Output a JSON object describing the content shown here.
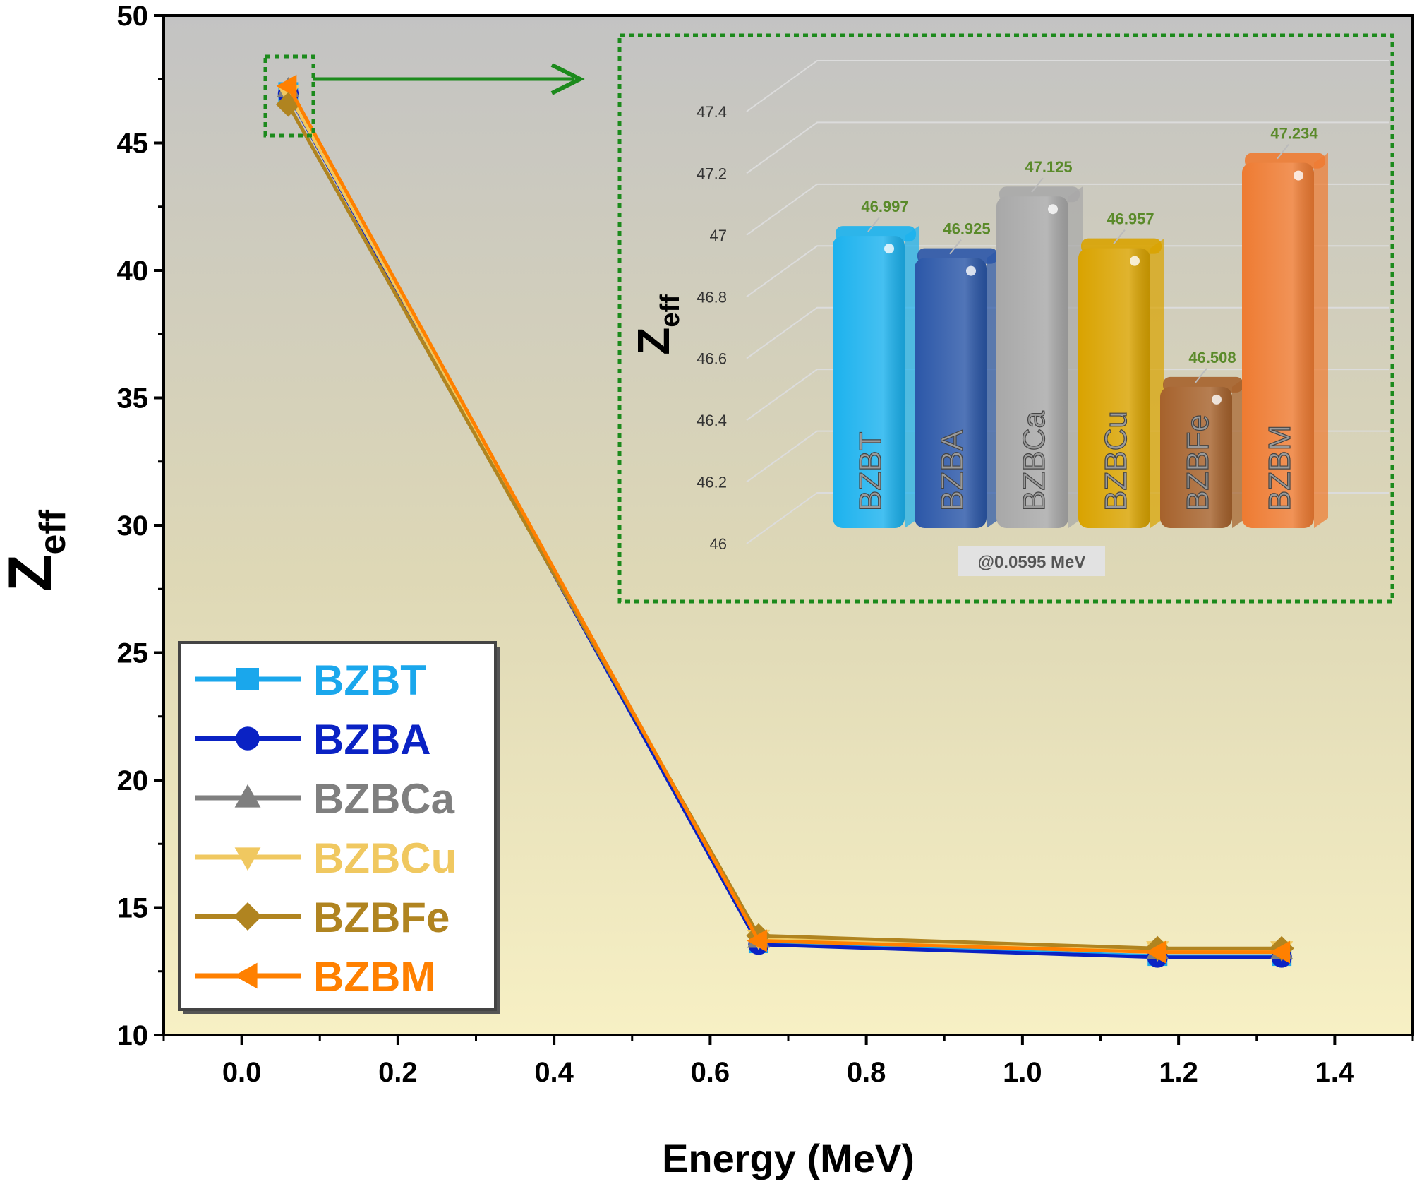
{
  "chart_data": [
    {
      "type": "line",
      "xlabel": "Energy (MeV)",
      "ylabel": {
        "main": "Z",
        "sub": "eff"
      },
      "xlim": [
        -0.1,
        1.5
      ],
      "ylim": [
        10,
        50
      ],
      "xticks": [
        "0.0",
        "0.2",
        "0.4",
        "0.6",
        "0.8",
        "1.0",
        "1.2",
        "1.4"
      ],
      "yticks": [
        "10",
        "15",
        "20",
        "25",
        "30",
        "35",
        "40",
        "45",
        "50"
      ],
      "x": [
        0.0595,
        0.662,
        1.173,
        1.332
      ],
      "series": [
        {
          "name": "BZBT",
          "color": "#1aa7ec",
          "marker": "square",
          "values": [
            46.997,
            13.6,
            13.1,
            13.1
          ]
        },
        {
          "name": "BZBA",
          "color": "#0a22c4",
          "marker": "circle",
          "values": [
            46.925,
            13.55,
            13.05,
            13.05
          ]
        },
        {
          "name": "BZBCa",
          "color": "#7f7f7f",
          "marker": "triangle-up",
          "values": [
            47.125,
            13.75,
            13.3,
            13.3
          ]
        },
        {
          "name": "BZBCu",
          "color": "#f0c860",
          "marker": "triangle-down",
          "values": [
            46.957,
            13.8,
            13.35,
            13.35
          ]
        },
        {
          "name": "BZBFe",
          "color": "#b08420",
          "marker": "diamond",
          "values": [
            46.508,
            13.9,
            13.4,
            13.4
          ]
        },
        {
          "name": "BZBM",
          "color": "#ff8000",
          "marker": "triangle-left",
          "values": [
            47.234,
            13.7,
            13.25,
            13.25
          ]
        }
      ],
      "legend": "bottom-left"
    },
    {
      "type": "bar",
      "title": "@0.0595 MeV",
      "ylabel": {
        "main": "Z",
        "sub": "eff"
      },
      "ylim": [
        46,
        47.4
      ],
      "yticks": [
        "46",
        "46.2",
        "46.4",
        "46.6",
        "46.8",
        "47",
        "47.2",
        "47.4"
      ],
      "categories": [
        "BZBT",
        "BZBA",
        "BZBCa",
        "BZBCu",
        "BZBFe",
        "BZBM"
      ],
      "values": [
        46.997,
        46.925,
        47.125,
        46.957,
        46.508,
        47.234
      ],
      "value_labels": [
        "46.997",
        "46.925",
        "47.125",
        "46.957",
        "46.508",
        "47.234"
      ],
      "colors": [
        "#1cb2ee",
        "#2b57a8",
        "#a8a8a8",
        "#d9a300",
        "#a6622c",
        "#ee7b32"
      ]
    }
  ]
}
